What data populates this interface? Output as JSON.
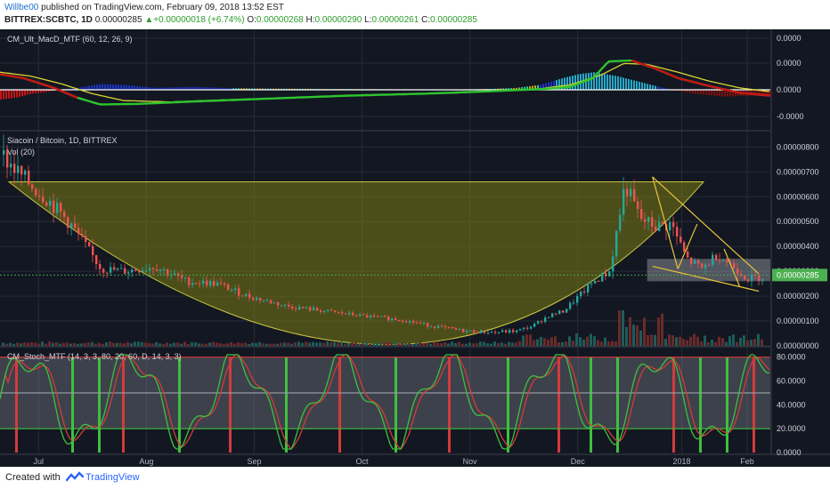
{
  "header": {
    "author": "Willbe00",
    "published_text": " published on TradingView.com, February 09, 2018 13:52 EST",
    "symbol": "BITTREX:SCBTC, 1D",
    "price": "0.00000285",
    "change_arrow": "▲",
    "change": "+0.00000018 (+6.74%)",
    "o_label": "O:",
    "o_value": "0.00000268",
    "h_label": "H:",
    "h_value": "0.00000290",
    "l_label": "L:",
    "l_value": "0.00000261",
    "c_label": "C:",
    "c_value": "0.00000285"
  },
  "footer": {
    "created": "Created with",
    "brand": "TradingView"
  },
  "colors": {
    "bg": "#131722",
    "grid": "#262b38",
    "up": "#26a69a",
    "down": "#ef5350",
    "macd_red": "#c81414",
    "macd_green": "#2ec42e",
    "signal_yellow": "#d8d832",
    "stoch_green": "#3fbf3f",
    "stoch_red": "#d23b3b",
    "bowl": "#8a8a1a",
    "price_tag": "#4caf50"
  },
  "chart_data": [
    {
      "type": "line",
      "title": "CM_Ult_MacD_MTF (60, 12, 26, 9)",
      "y_axis_labels": [
        "0.0000",
        "0.0000",
        "0.0000",
        "-0.0000"
      ],
      "zero_line_label": "0.0000",
      "series": [
        {
          "name": "macd",
          "x": [
            0,
            0.03,
            0.07,
            0.1,
            0.13,
            0.18,
            0.25,
            0.35,
            0.45,
            0.55,
            0.62,
            0.68,
            0.71,
            0.74,
            0.77,
            0.79,
            0.82,
            0.85,
            0.88,
            0.92,
            0.96,
            1.0
          ],
          "values": [
            0.8,
            0.6,
            0.1,
            -0.4,
            -0.75,
            -0.72,
            -0.6,
            -0.45,
            -0.3,
            -0.2,
            -0.1,
            0.0,
            0.05,
            0.15,
            0.6,
            1.45,
            1.5,
            1.1,
            0.6,
            0.2,
            -0.15,
            -0.3
          ]
        },
        {
          "name": "signal",
          "x": [
            0,
            0.04,
            0.08,
            0.12,
            0.16,
            0.22,
            0.3,
            0.4,
            0.5,
            0.6,
            0.66,
            0.7,
            0.74,
            0.78,
            0.81,
            0.84,
            0.88,
            0.92,
            0.96,
            1.0
          ],
          "values": [
            0.9,
            0.7,
            0.3,
            -0.2,
            -0.55,
            -0.62,
            -0.5,
            -0.38,
            -0.26,
            -0.15,
            -0.05,
            0.05,
            0.25,
            0.75,
            1.35,
            1.3,
            0.9,
            0.45,
            0.1,
            -0.1
          ]
        }
      ],
      "histogram": {
        "x": [
          0.0,
          0.02,
          0.04,
          0.06,
          0.1,
          0.13,
          0.16,
          0.2,
          0.25,
          0.3,
          0.35,
          0.4,
          0.45,
          0.5,
          0.55,
          0.6,
          0.64,
          0.67,
          0.7,
          0.73,
          0.75,
          0.77,
          0.8,
          0.83,
          0.86,
          0.9,
          0.94,
          0.97
        ],
        "values": [
          -0.5,
          -0.4,
          -0.2,
          -0.1,
          0.1,
          0.3,
          0.25,
          0.1,
          0.15,
          0.08,
          0.06,
          0.05,
          0.04,
          0.03,
          0.02,
          0.02,
          0.05,
          0.1,
          0.25,
          0.6,
          0.8,
          0.9,
          0.7,
          0.4,
          0.1,
          -0.2,
          -0.35,
          -0.3
        ]
      }
    },
    {
      "type": "candlestick",
      "title": "Siacoin / Bitcoin, 1D, BITTREX",
      "subtitle": "Vol (20)",
      "y_axis_labels": [
        "0.00000800",
        "0.00000700",
        "0.00000600",
        "0.00000500",
        "0.00000400",
        "0.00000300",
        "0.00000200",
        "0.00000100",
        "0.00000000"
      ],
      "y_values": [
        8,
        7,
        6,
        5,
        4,
        3,
        2,
        1,
        0
      ],
      "ylim": [
        0,
        8.3
      ],
      "last_price_label": "0.00000285",
      "last_price": 2.85,
      "trend_points_x": [
        0,
        0.03,
        0.06,
        0.09,
        0.11,
        0.13,
        0.16,
        0.2,
        0.24,
        0.28,
        0.32,
        0.37,
        0.42,
        0.47,
        0.52,
        0.56,
        0.6,
        0.64,
        0.67,
        0.69,
        0.71,
        0.73,
        0.75,
        0.77,
        0.79,
        0.81,
        0.83,
        0.85,
        0.87,
        0.89,
        0.91,
        0.93,
        0.95,
        0.97,
        1.0
      ],
      "trend_points_y": [
        7.7,
        6.7,
        5.9,
        4.9,
        4.0,
        3.1,
        3.0,
        3.2,
        2.6,
        2.5,
        2.0,
        1.6,
        1.4,
        1.2,
        1.05,
        0.8,
        0.6,
        0.55,
        0.6,
        0.8,
        1.2,
        1.4,
        2.0,
        2.6,
        3.0,
        6.5,
        5.1,
        4.8,
        4.9,
        3.5,
        3.1,
        3.7,
        3.2,
        2.7,
        2.85
      ]
    },
    {
      "type": "line",
      "title": "CM_Stoch_MTF (14, 3, 3, 80, 20, 60, D, 14, 3, 3)",
      "y_axis_labels": [
        "80.0000",
        "60.0000",
        "40.0000",
        "20.0000",
        "0.0000"
      ],
      "y_values": [
        80,
        60,
        40,
        20,
        0
      ],
      "ylim": [
        0,
        85
      ],
      "bands": [
        20,
        50,
        80
      ]
    }
  ],
  "time_axis": {
    "labels": [
      "Jul",
      "Aug",
      "Sep",
      "Oct",
      "Nov",
      "Dec",
      "2018",
      "Feb"
    ],
    "fractions": [
      0.05,
      0.19,
      0.33,
      0.47,
      0.61,
      0.75,
      0.885,
      0.97
    ]
  }
}
